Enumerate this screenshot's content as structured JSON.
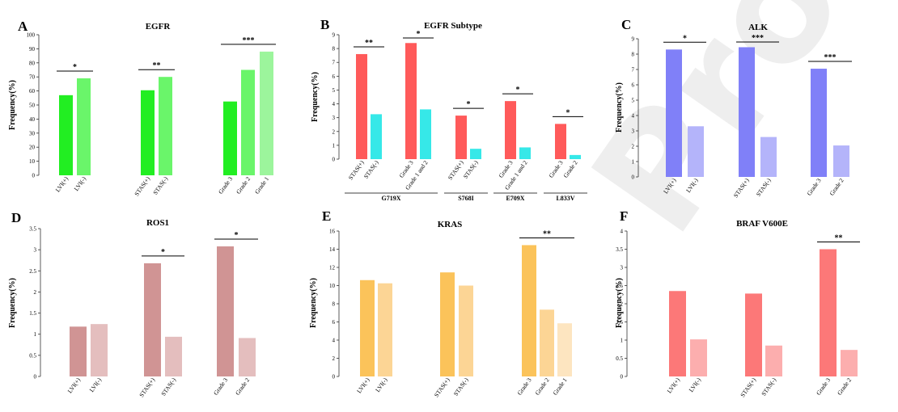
{
  "colors": {
    "egfr": [
      "#22ee22",
      "#6af56a",
      "#9cf59c"
    ],
    "egfr_subtype": [
      "#ff5a5a",
      "#36e8e8"
    ],
    "alk": [
      "#8080f8",
      "#b4b4fa"
    ],
    "ros1": [
      "#d09494",
      "#e4bebe"
    ],
    "kras": [
      "#fbc35a",
      "#fcd595",
      "#fde5c0"
    ],
    "braf": [
      "#fc7878",
      "#fcaeae"
    ]
  },
  "watermark": "Proofs",
  "chart_data": [
    {
      "type": "bar",
      "panel": "A",
      "title": "EGFR",
      "ylabel": "Frequency(%)",
      "ylim": [
        0,
        100
      ],
      "yticks": [
        "0",
        "10",
        "20",
        "30",
        "40",
        "50",
        "60",
        "70",
        "80",
        "90",
        "100"
      ],
      "categories": [
        "LVI(+)",
        "LVI(-)",
        "STAS(+)",
        "STAS(-)",
        "Grade 3",
        "Grade 2",
        "Grade 1"
      ],
      "values": [
        57,
        69,
        60.5,
        70,
        52.5,
        75,
        88
      ],
      "groups": [
        [
          0,
          1
        ],
        [
          2,
          3
        ],
        [
          4,
          5,
          6
        ]
      ],
      "significance": [
        {
          "label": "*",
          "group": 0
        },
        {
          "label": "**",
          "group": 1
        },
        {
          "label": "***",
          "group": 2
        }
      ]
    },
    {
      "type": "bar",
      "panel": "B",
      "title": "EGFR Subtype",
      "ylabel": "Frequency(%)",
      "ylim": [
        0,
        9
      ],
      "yticks": [
        "0",
        "1",
        "2",
        "3",
        "4",
        "5",
        "6",
        "7",
        "8",
        "9"
      ],
      "categories": [
        "STAS(+)",
        "STAS(-)",
        "Grade 3",
        "Grade 1 and 2",
        "STAS(+)",
        "STAS(-)",
        "Grade 3",
        "Grade 1 and 2",
        "Grade 3",
        "Grade 2"
      ],
      "values": [
        7.6,
        3.25,
        8.4,
        3.6,
        3.15,
        0.75,
        4.2,
        0.85,
        2.55,
        0.3
      ],
      "groups": [
        [
          0,
          1
        ],
        [
          2,
          3
        ],
        [
          4,
          5
        ],
        [
          6,
          7
        ],
        [
          8,
          9
        ]
      ],
      "subgroups": [
        {
          "label": "G719X",
          "groups": [
            0,
            1
          ]
        },
        {
          "label": "S768I",
          "groups": [
            2
          ]
        },
        {
          "label": "E709X",
          "groups": [
            3
          ]
        },
        {
          "label": "L833V",
          "groups": [
            4
          ]
        }
      ],
      "significance": [
        {
          "label": "**",
          "group": 0
        },
        {
          "label": "*",
          "group": 1
        },
        {
          "label": "*",
          "group": 2
        },
        {
          "label": "*",
          "group": 3
        },
        {
          "label": "*",
          "group": 4
        }
      ]
    },
    {
      "type": "bar",
      "panel": "C",
      "title": "ALK",
      "ylabel": "Frequency(%)",
      "ylim": [
        0,
        9
      ],
      "yticks": [
        "0",
        "1",
        "2",
        "3",
        "4",
        "5",
        "6",
        "7",
        "8",
        "9"
      ],
      "categories": [
        "LVI(+)",
        "LVI(-)",
        "STAS(+)",
        "STAS(-)",
        "Grade 3",
        "Grade 2"
      ],
      "values": [
        8.3,
        3.3,
        8.45,
        2.6,
        7.05,
        2.05
      ],
      "groups": [
        [
          0,
          1
        ],
        [
          2,
          3
        ],
        [
          4,
          5
        ]
      ],
      "significance": [
        {
          "label": "*",
          "group": 0
        },
        {
          "label": "***",
          "group": 1
        },
        {
          "label": "***",
          "group": 2
        }
      ]
    },
    {
      "type": "bar",
      "panel": "D",
      "title": "ROS1",
      "ylabel": "Frequency(%)",
      "ylim": [
        0,
        3.5
      ],
      "yticks": [
        "0",
        "0.5",
        "1",
        "1.5",
        "2",
        "2.5",
        "3",
        "3.5"
      ],
      "categories": [
        "LVI(+)",
        "LVI(-)",
        "STAS(+)",
        "STAS(-)",
        "Grade 3",
        "Grade 2"
      ],
      "values": [
        1.18,
        1.24,
        2.68,
        0.94,
        3.08,
        0.91
      ],
      "groups": [
        [
          0,
          1
        ],
        [
          2,
          3
        ],
        [
          4,
          5
        ]
      ],
      "significance": [
        {
          "label": "*",
          "group": 1
        },
        {
          "label": "*",
          "group": 2
        }
      ]
    },
    {
      "type": "bar",
      "panel": "E",
      "title": "KRAS",
      "ylabel": "Frequency(%)",
      "ylim": [
        0,
        16
      ],
      "yticks": [
        "0",
        "2",
        "4",
        "6",
        "8",
        "10",
        "12",
        "14",
        "16"
      ],
      "categories": [
        "LVI(+)",
        "LVI(-)",
        "STAS(+)",
        "STAS(-)",
        "Grade 3",
        "Grade 2",
        "Grade 1"
      ],
      "values": [
        10.6,
        10.25,
        11.45,
        10,
        14.45,
        7.35,
        5.85
      ],
      "groups": [
        [
          0,
          1
        ],
        [
          2,
          3
        ],
        [
          4,
          5,
          6
        ]
      ],
      "significance": [
        {
          "label": "**",
          "group": 2
        }
      ]
    },
    {
      "type": "bar",
      "panel": "F",
      "title": "BRAF V600E",
      "ylabel": "Frequency(%)",
      "ylim": [
        0,
        4
      ],
      "yticks": [
        "0",
        "0.5",
        "1",
        "1.5",
        "2",
        "2.5",
        "3",
        "3.5",
        "4"
      ],
      "categories": [
        "LVI(+)",
        "LVI(-)",
        "STAS(+)",
        "STAS(-)",
        "Grade 3",
        "Grade 2"
      ],
      "values": [
        2.35,
        1.02,
        2.28,
        0.85,
        3.5,
        0.73
      ],
      "groups": [
        [
          0,
          1
        ],
        [
          2,
          3
        ],
        [
          4,
          5
        ]
      ],
      "significance": [
        {
          "label": "**",
          "group": 2
        }
      ]
    }
  ]
}
